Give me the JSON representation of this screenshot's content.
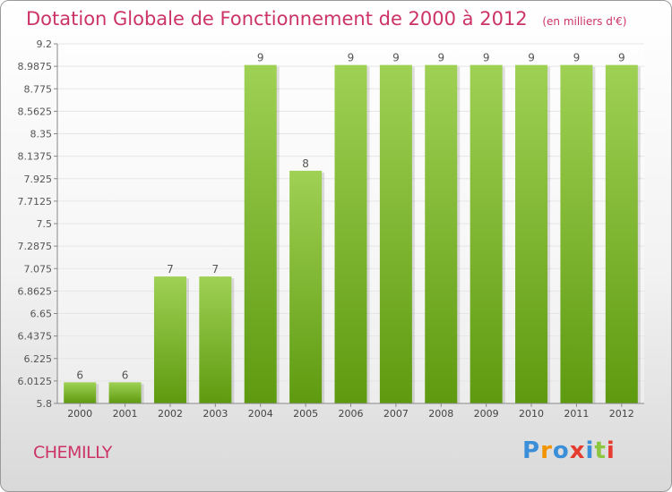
{
  "title": "Dotation Globale de Fonctionnement de 2000 à 2012",
  "subtitle": "(en milliers d'€)",
  "place": "CHEMILLY",
  "logo": {
    "letters": [
      "P",
      "r",
      "o",
      "x",
      "i",
      "t",
      "i"
    ],
    "colors": [
      "#3a8fd8",
      "#f29400",
      "#3a8fd8",
      "#e63c2f",
      "#3a8fd8",
      "#8dc63f",
      "#e63c2f"
    ]
  },
  "colors": {
    "bar_light": "#9fd154",
    "bar_dark": "#5e9a10",
    "text_accent": "#cc3366",
    "grid": "#e6e6e6"
  },
  "chart_data": {
    "type": "bar",
    "title": "Dotation Globale de Fonctionnement de 2000 à 2012",
    "subtitle": "(en milliers d'€)",
    "categories": [
      "2000",
      "2001",
      "2002",
      "2003",
      "2004",
      "2005",
      "2006",
      "2007",
      "2008",
      "2009",
      "2010",
      "2011",
      "2012"
    ],
    "values": [
      6,
      6,
      7,
      7,
      9,
      8,
      9,
      9,
      9,
      9,
      9,
      9,
      9
    ],
    "ylim": [
      5.8,
      9.2
    ],
    "yticks": [
      "5.8",
      "6.0125",
      "6.225",
      "6.4375",
      "6.65",
      "6.8625",
      "7.075",
      "7.2875",
      "7.5",
      "7.7125",
      "7.925",
      "8.1375",
      "8.35",
      "8.5625",
      "8.775",
      "8.9875",
      "9.2"
    ],
    "grid": true,
    "xlabel": "",
    "ylabel": ""
  }
}
